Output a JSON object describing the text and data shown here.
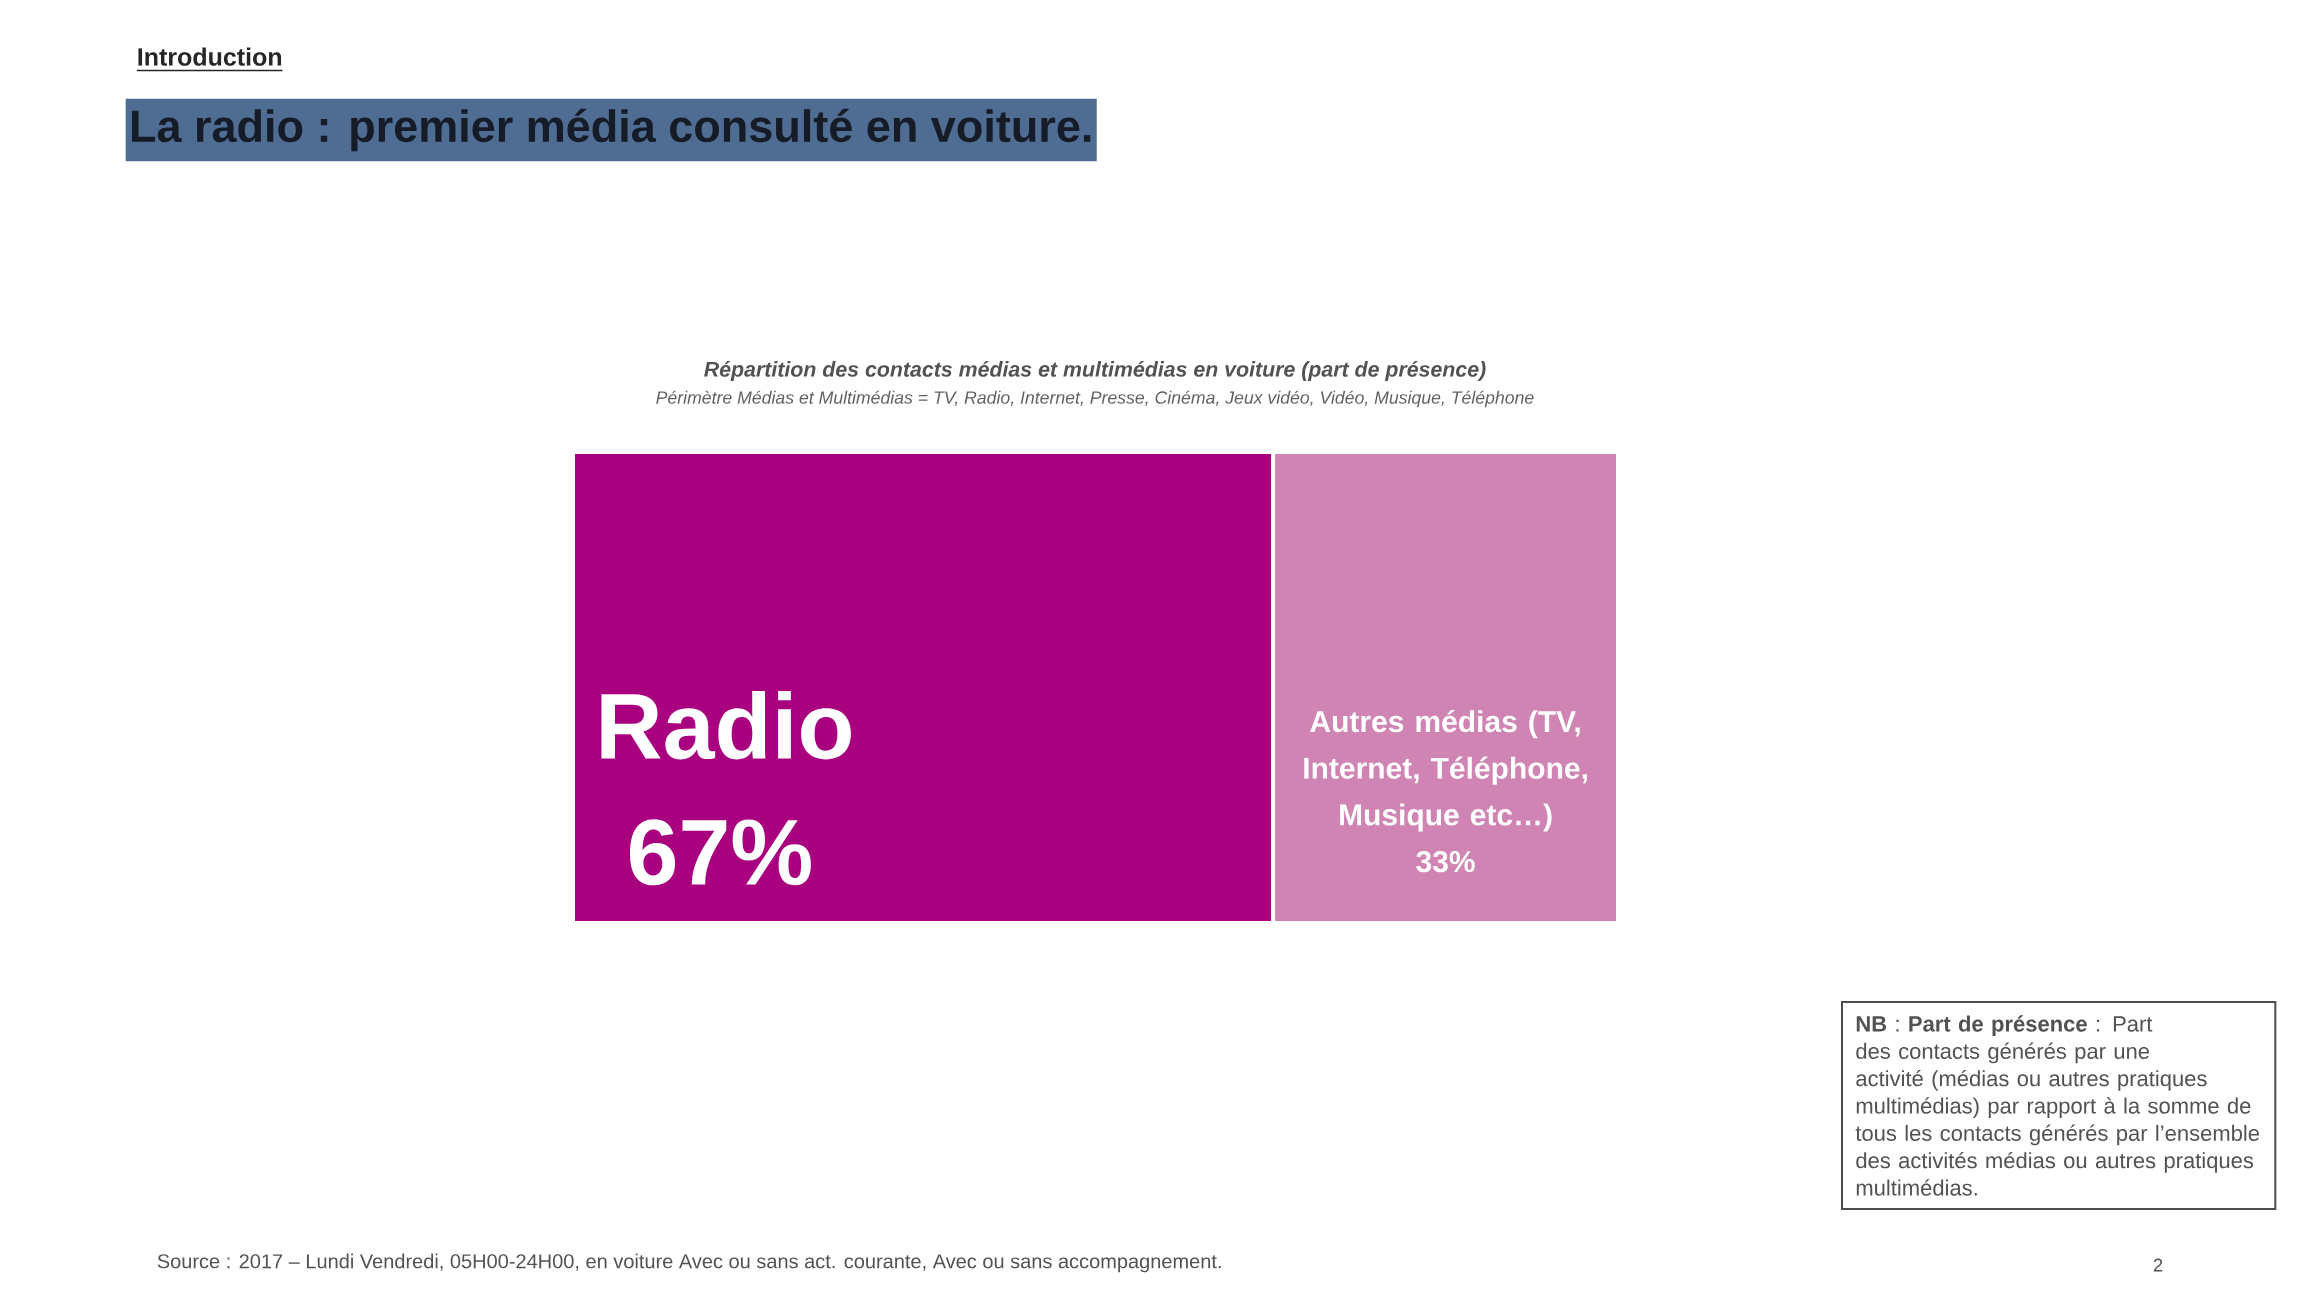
{
  "chart_data": {
    "type": "other",
    "title": "Répartition des contacts médias et multimédias en voiture (part de présence)",
    "subtitle": "Périmètre Médias et Multimédias = TV, Radio, Internet, Presse, Cinéma, Jeux vidéo, Vidéo, Musique, Téléphone",
    "categories": [
      "Radio",
      "Autres médias (TV, Internet, Téléphone, Musique etc…)"
    ],
    "values": [
      67,
      33
    ],
    "value_labels": [
      "67%",
      "33%"
    ],
    "colors": [
      "#a8007f",
      "#cf84b4"
    ],
    "annotations": [
      "Introduction",
      "La radio : premier média consulté en voiture.",
      "**NB** : **Part de présence** : Part des contacts générés par une activité (médias ou autres pratiques multimédias) par rapport à la somme de tous les contacts générés par l’ensemble des activités médias ou autres pratiques multimédias.",
      "Source : 2017 – Lundi Vendredi, 05H00-24H00, en voiture Avec ou sans act. courante, Avec ou sans accompagnement.",
      "2"
    ]
  }
}
